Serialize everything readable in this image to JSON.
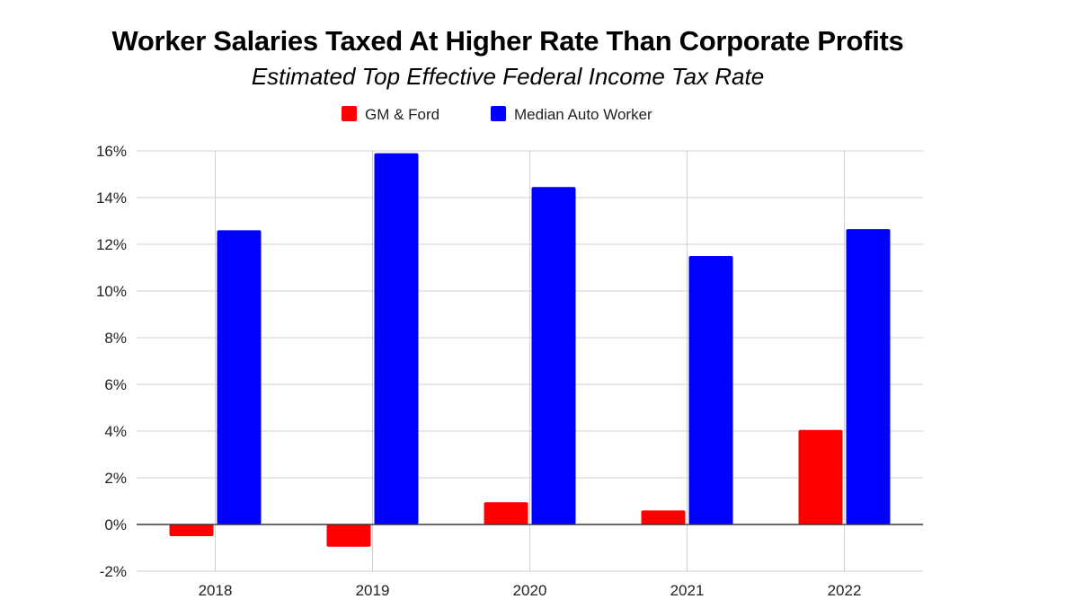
{
  "chart_data": {
    "type": "bar",
    "title": "Worker Salaries Taxed At Higher Rate Than Corporate Profits",
    "subtitle": "Estimated Top Effective Federal Income Tax Rate",
    "xlabel": "",
    "ylabel": "",
    "categories": [
      "2018",
      "2019",
      "2020",
      "2021",
      "2022"
    ],
    "series": [
      {
        "name": "GM & Ford",
        "color": "#ff0000",
        "values": [
          -0.5,
          -0.95,
          0.95,
          0.6,
          4.05
        ]
      },
      {
        "name": "Median Auto Worker",
        "color": "#0000ff",
        "values": [
          12.6,
          15.9,
          14.45,
          11.5,
          12.65
        ]
      }
    ],
    "ylim": [
      -2,
      16
    ],
    "yticks": [
      -2,
      0,
      2,
      4,
      6,
      8,
      10,
      12,
      14,
      16
    ],
    "ytick_labels": [
      "-2%",
      "0%",
      "2%",
      "4%",
      "6%",
      "8%",
      "10%",
      "12%",
      "14%",
      "16%"
    ],
    "grid": true,
    "legend_position": "top-center"
  }
}
